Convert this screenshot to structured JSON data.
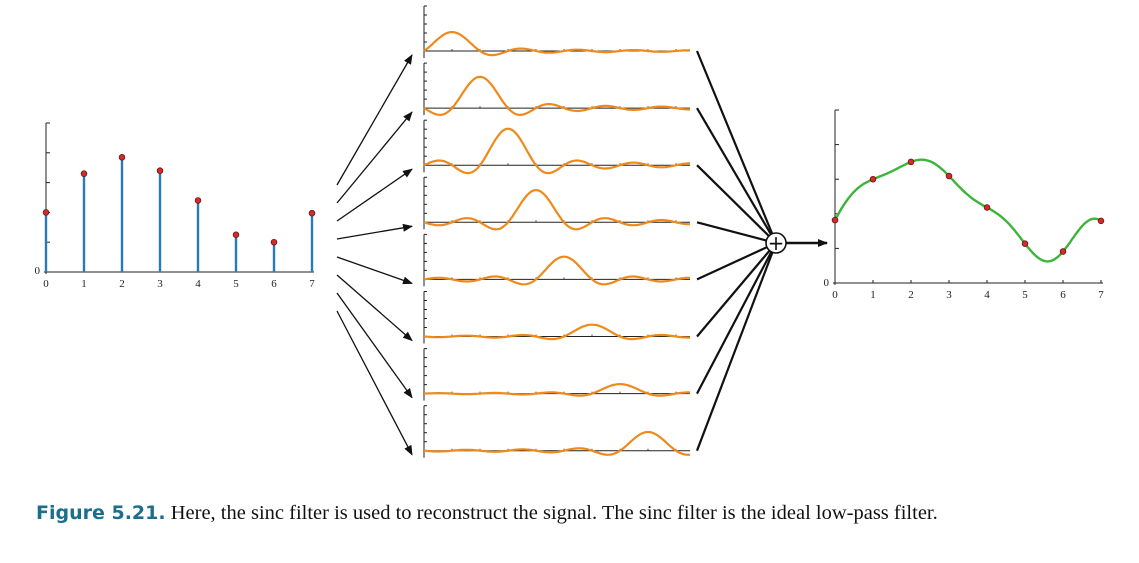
{
  "figure": {
    "input_samples": {
      "x": [
        0,
        1,
        2,
        3,
        4,
        5,
        6,
        7
      ],
      "y": [
        0.8,
        1.32,
        1.54,
        1.36,
        0.96,
        0.5,
        0.4,
        0.79
      ],
      "x_tick_labels": [
        "0",
        "1",
        "2",
        "3",
        "4",
        "5",
        "6",
        "7"
      ],
      "y_zero_label": "0",
      "ylim": [
        0,
        2.0
      ]
    },
    "sinc_components": {
      "count": 8,
      "ylim": [
        -0.5,
        1.9
      ]
    },
    "sum_symbol": "+",
    "output_samples": {
      "x_tick_labels": [
        "0",
        "1",
        "2",
        "3",
        "4",
        "5",
        "6",
        "7"
      ],
      "y_zero_label": "0",
      "ylim": [
        0,
        2.2
      ]
    },
    "colors": {
      "stem": "#2a7ab9",
      "sample_point": "#d42a2a",
      "sinc_curve": "#ee8a1c",
      "reconstructed_curve": "#3cb53c",
      "axis": "#222222"
    }
  },
  "caption": {
    "label": "Figure 5.21.",
    "text": "Here, the sinc filter is used to reconstruct the signal. The sinc filter is the ideal low-pass filter."
  }
}
